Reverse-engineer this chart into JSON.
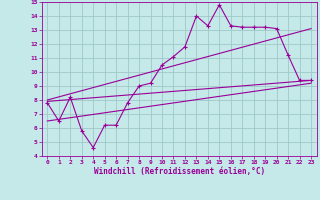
{
  "xlabel": "Windchill (Refroidissement éolien,°C)",
  "bg_color": "#c5e8e8",
  "grid_color": "#a0c8c8",
  "line_color": "#990099",
  "xlim": [
    -0.5,
    23.5
  ],
  "ylim": [
    4,
    15
  ],
  "xticks": [
    0,
    1,
    2,
    3,
    4,
    5,
    6,
    7,
    8,
    9,
    10,
    11,
    12,
    13,
    14,
    15,
    16,
    17,
    18,
    19,
    20,
    21,
    22,
    23
  ],
  "yticks": [
    4,
    5,
    6,
    7,
    8,
    9,
    10,
    11,
    12,
    13,
    14,
    15
  ],
  "data_x": [
    0,
    1,
    2,
    3,
    4,
    5,
    6,
    7,
    8,
    9,
    10,
    11,
    12,
    13,
    14,
    15,
    16,
    17,
    18,
    19,
    20,
    21,
    22,
    23
  ],
  "data_y": [
    7.8,
    6.5,
    8.2,
    5.8,
    4.6,
    6.2,
    6.2,
    7.8,
    9.0,
    9.2,
    10.5,
    11.1,
    11.8,
    14.0,
    13.3,
    14.8,
    13.3,
    13.2,
    13.2,
    13.2,
    13.1,
    11.2,
    9.4,
    9.4
  ],
  "trend1_x": [
    0,
    23
  ],
  "trend1_y": [
    7.9,
    9.4
  ],
  "trend2_x": [
    0,
    23
  ],
  "trend2_y": [
    8.0,
    13.1
  ],
  "trend3_x": [
    0,
    23
  ],
  "trend3_y": [
    6.5,
    9.2
  ]
}
